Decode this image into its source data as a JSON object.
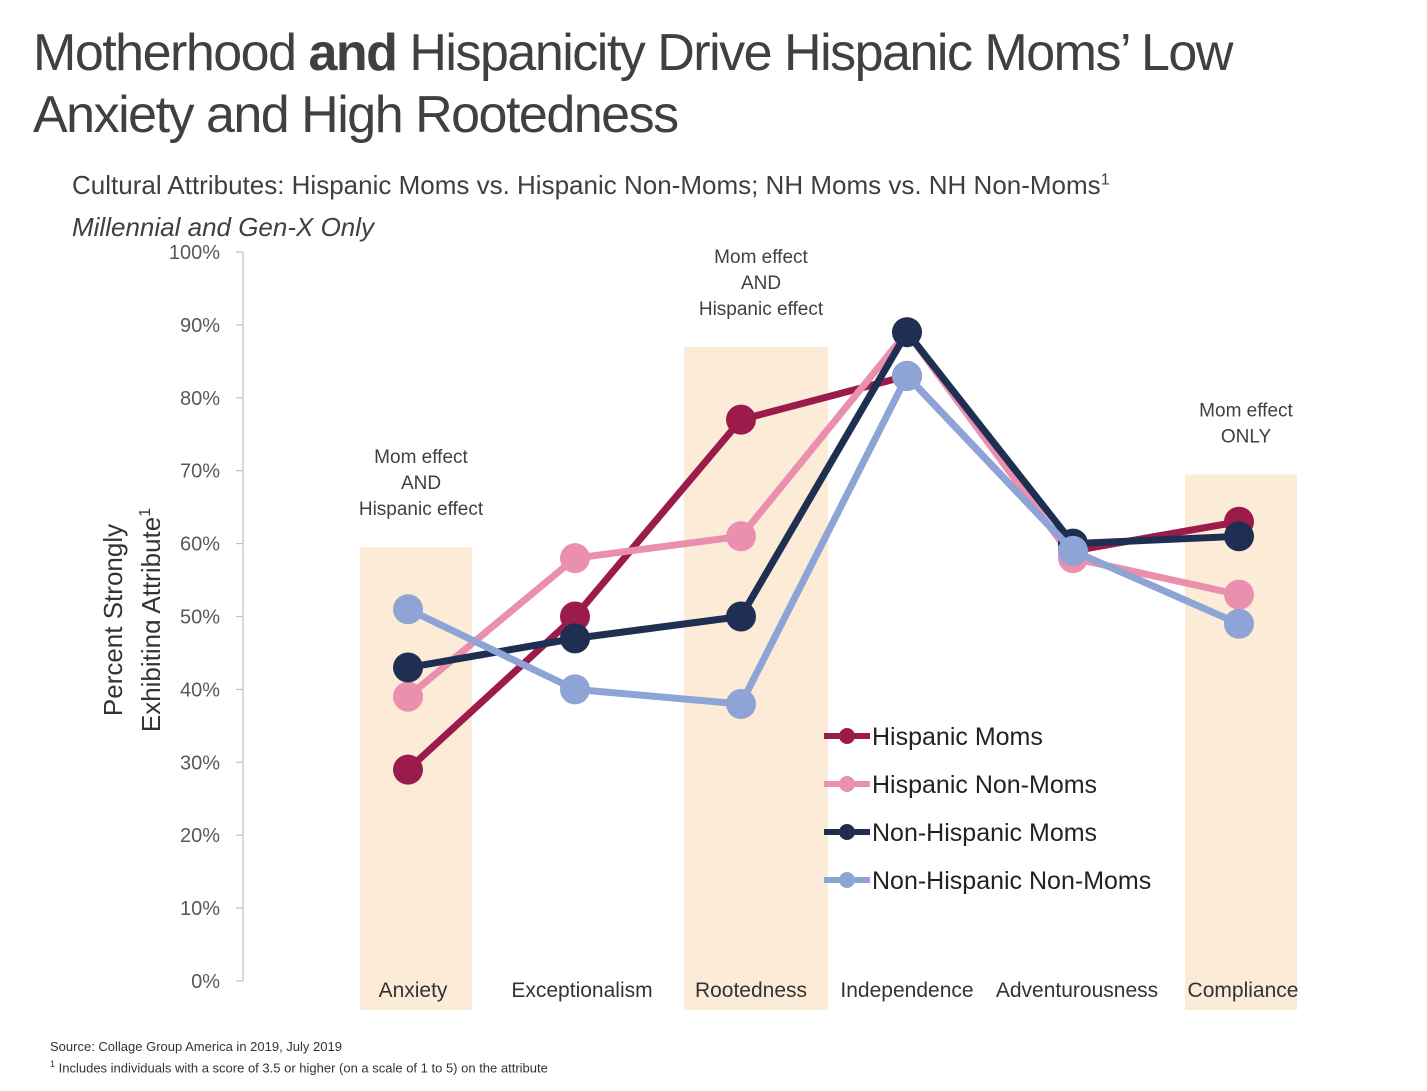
{
  "title": {
    "part1": "Motherhood ",
    "bold": "and",
    "part2": " Hispanicity Drive Hispanic Moms’ Low Anxiety and High Rootedness"
  },
  "subtitle": {
    "text": "Cultural Attributes: Hispanic Moms vs. Hispanic Non-Moms; NH Moms vs. NH Non-Moms",
    "sup": "1"
  },
  "subtitle2": "Millennial and Gen-X Only",
  "ylabel": {
    "line1": "Percent Strongly",
    "line2": "Exhibiting Attribute",
    "sup": "1"
  },
  "source": "Source: Collage Group America in 2019, July 2019",
  "footnote": {
    "sup": "1",
    "text": " Includes individuals with a score of 3.5 or higher (on a scale of 1 to 5) on the attribute"
  },
  "colors": {
    "highlight": "#fcebd7",
    "hispanic_moms": "#9b1c4b",
    "hispanic_non_moms": "#ea8fae",
    "nh_moms": "#1e2f52",
    "nh_non_moms": "#8ea4d6",
    "axis": "#bfbfbf"
  },
  "chart_data": {
    "type": "line",
    "categories": [
      "Anxiety",
      "Exceptionalism",
      "Rootedness",
      "Independence",
      "Adventurousness",
      "Compliance"
    ],
    "ylim": [
      0,
      100
    ],
    "yticks": [
      "0%",
      "10%",
      "20%",
      "30%",
      "40%",
      "50%",
      "60%",
      "70%",
      "80%",
      "90%",
      "100%"
    ],
    "series": [
      {
        "name": "Hispanic Moms",
        "color": "#9b1c4b",
        "values": [
          29,
          50,
          77,
          83,
          59,
          63
        ]
      },
      {
        "name": "Hispanic Non-Moms",
        "color": "#ea8fae",
        "values": [
          39,
          58,
          61,
          89,
          58,
          53
        ]
      },
      {
        "name": "Non-Hispanic Moms",
        "color": "#1e2f52",
        "values": [
          43,
          47,
          50,
          89,
          60,
          61
        ]
      },
      {
        "name": "Non-Hispanic Non-Moms",
        "color": "#8ea4d6",
        "values": [
          51,
          40,
          38,
          83,
          59,
          49
        ]
      }
    ],
    "highlights": [
      {
        "category": "Anxiety",
        "top": 59.5,
        "label": [
          "Mom effect",
          "AND",
          "Hispanic effect"
        ]
      },
      {
        "category": "Rootedness",
        "top": 87,
        "label": [
          "Mom effect",
          "AND",
          "Hispanic effect"
        ]
      },
      {
        "category": "Compliance",
        "top": 69.5,
        "label": [
          "Mom effect",
          "ONLY"
        ]
      }
    ],
    "legend_position": "right"
  }
}
